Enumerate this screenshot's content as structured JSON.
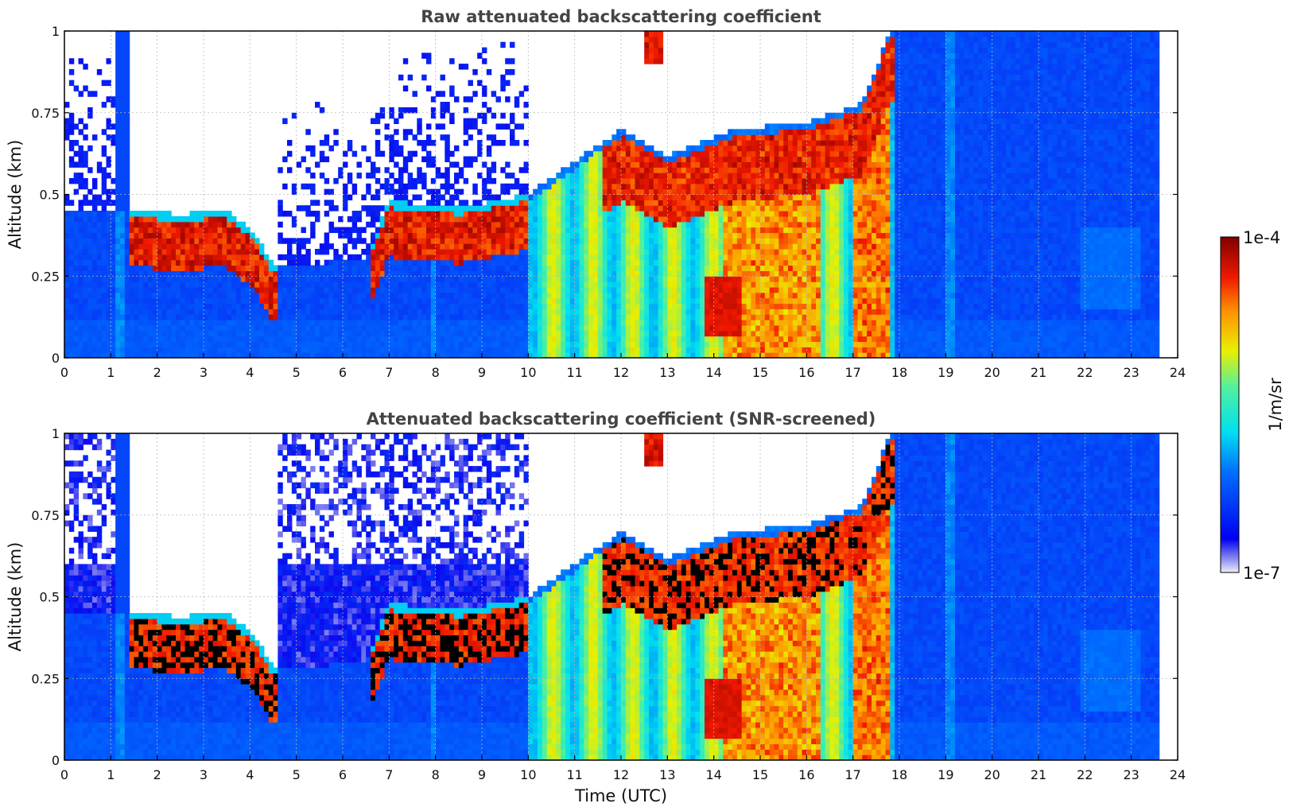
{
  "chart_data": [
    {
      "type": "heatmap",
      "title": "Raw attenuated backscattering coefficient",
      "xlabel": "",
      "ylabel": "Altitude (km)",
      "xlim": [
        0,
        24
      ],
      "ylim": [
        0,
        1
      ],
      "xticks": [
        "0",
        "1",
        "2",
        "3",
        "4",
        "5",
        "6",
        "7",
        "8",
        "9",
        "10",
        "11",
        "12",
        "13",
        "14",
        "15",
        "16",
        "17",
        "18",
        "19",
        "20",
        "21",
        "22",
        "23",
        "24"
      ],
      "yticks": [
        "0",
        "0.25",
        "0.5",
        "0.75",
        "1"
      ],
      "grid": true,
      "screened": false,
      "layer_top_km": [
        {
          "t": 1.4,
          "top": 0.45
        },
        {
          "t": 2.5,
          "top": 0.44
        },
        {
          "t": 3.5,
          "top": 0.45
        },
        {
          "t": 4.1,
          "top": 0.38
        },
        {
          "t": 4.5,
          "top": 0.28
        },
        {
          "t": 6.5,
          "top": 0.3
        },
        {
          "t": 7.0,
          "top": 0.48
        },
        {
          "t": 8.5,
          "top": 0.46
        },
        {
          "t": 10.0,
          "top": 0.5
        },
        {
          "t": 12.0,
          "top": 0.7
        },
        {
          "t": 13.0,
          "top": 0.62
        },
        {
          "t": 14.5,
          "top": 0.7
        },
        {
          "t": 16.0,
          "top": 0.72
        },
        {
          "t": 17.2,
          "top": 0.78
        },
        {
          "t": 17.8,
          "top": 1.0
        }
      ]
    },
    {
      "type": "heatmap",
      "title": "Attenuated backscattering coefficient (SNR-screened)",
      "xlabel": "Time (UTC)",
      "ylabel": "Altitude (km)",
      "xlim": [
        0,
        24
      ],
      "ylim": [
        0,
        1
      ],
      "xticks": [
        "0",
        "1",
        "2",
        "3",
        "4",
        "5",
        "6",
        "7",
        "8",
        "9",
        "10",
        "11",
        "12",
        "13",
        "14",
        "15",
        "16",
        "17",
        "18",
        "19",
        "20",
        "21",
        "22",
        "23",
        "24"
      ],
      "yticks": [
        "0",
        "0.25",
        "0.5",
        "0.75",
        "1"
      ],
      "grid": true,
      "screened": true
    }
  ],
  "colorbar": {
    "label": "1/m/sr",
    "max_label": "1e-4",
    "min_label": "1e-7",
    "scale": "log",
    "range": [
      1e-07,
      0.0001
    ],
    "colormap": "jet"
  },
  "colors": {
    "background_clear": "#ffffff",
    "low": "#e6e6f8",
    "blue": "#0a1ef0",
    "cyan": "#00e5ee",
    "yellow": "#e8f000",
    "red": "#f01400",
    "dark_red": "#7a0000",
    "saturated": "#000000"
  }
}
